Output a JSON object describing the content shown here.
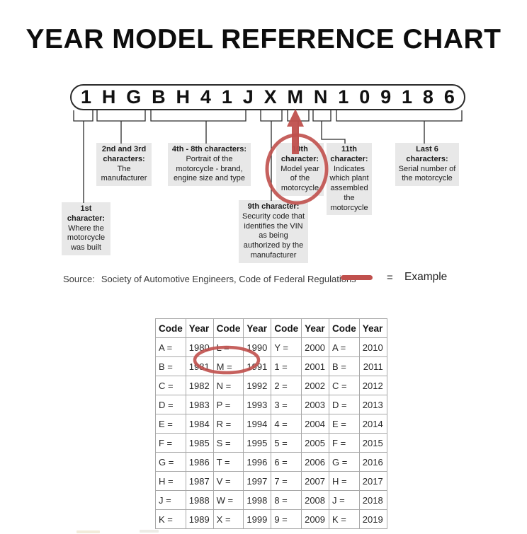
{
  "title": "YEAR MODEL REFERENCE CHART",
  "vin": {
    "characters": [
      "1",
      "H",
      "G",
      "B",
      "H",
      "4",
      "1",
      "J",
      "X",
      "M",
      "N",
      "1",
      "0",
      "9",
      "1",
      "8",
      "6"
    ]
  },
  "callouts": [
    {
      "title": "1st character:",
      "body": "Where the motorcycle was built"
    },
    {
      "title": "2nd and 3rd characters:",
      "body": "The manufacturer"
    },
    {
      "title": "4th - 8th characters:",
      "body": "Portrait of the motorcycle - brand, engine size and type"
    },
    {
      "title": "9th character:",
      "body": "Security code that identifies the VIN as being authorized by the manufacturer"
    },
    {
      "title": "10th character:",
      "body": "Model year of the motorcycle"
    },
    {
      "title": "11th character:",
      "body": "Indicates which plant assembled the motorcycle"
    },
    {
      "title": "Last 6 characters:",
      "body": "Serial number of the motorcycle"
    }
  ],
  "source": {
    "label": "Source:",
    "text": "Society of Automotive Engineers, Code of Federal Regulations"
  },
  "legend": {
    "equals": "=",
    "label": "Example"
  },
  "highlights": {
    "vin_character": "M",
    "table_entry": "M = 1991"
  },
  "year_table": {
    "headers": [
      "Code",
      "Year",
      "Code",
      "Year",
      "Code",
      "Year",
      "Code",
      "Year"
    ],
    "rows": [
      [
        "A =",
        "1980",
        "L =",
        "1990",
        "Y =",
        "2000",
        "A =",
        "2010"
      ],
      [
        "B =",
        "1981",
        "M =",
        "1991",
        "1 =",
        "2001",
        "B =",
        "2011"
      ],
      [
        "C =",
        "1982",
        "N =",
        "1992",
        "2 =",
        "2002",
        "C =",
        "2012"
      ],
      [
        "D =",
        "1983",
        "P =",
        "1993",
        "3 =",
        "2003",
        "D =",
        "2013"
      ],
      [
        "E =",
        "1984",
        "R =",
        "1994",
        "4 =",
        "2004",
        "E =",
        "2014"
      ],
      [
        "F =",
        "1985",
        "S =",
        "1995",
        "5 =",
        "2005",
        "F =",
        "2015"
      ],
      [
        "G =",
        "1986",
        "T =",
        "1996",
        "6 =",
        "2006",
        "G =",
        "2016"
      ],
      [
        "H =",
        "1987",
        "V =",
        "1997",
        "7 =",
        "2007",
        "H =",
        "2017"
      ],
      [
        "J =",
        "1988",
        "W =",
        "1998",
        "8 =",
        "2008",
        "J =",
        "2018"
      ],
      [
        "K =",
        "1989",
        "X =",
        "1999",
        "9 =",
        "2009",
        "K =",
        "2019"
      ]
    ]
  },
  "colors": {
    "accent_red": "#c0504d",
    "callout_bg": "#e8e8e8",
    "line": "#2b2b2b",
    "table_border": "#a8a8a8"
  }
}
